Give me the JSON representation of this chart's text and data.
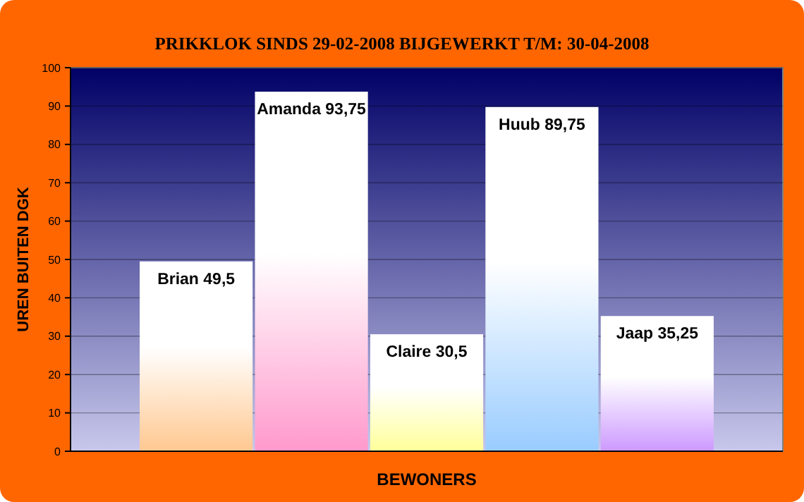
{
  "chart_data": {
    "type": "bar",
    "title": "PRIKKLOK SINDS 29-02-2008 BIJGEWERKT T/M: 30-04-2008",
    "xlabel": "BEWONERS",
    "ylabel": "UREN BUITEN DGK",
    "categories": [
      null,
      null,
      null,
      null,
      null
    ],
    "values": [
      49.5,
      93.75,
      30.5,
      89.75,
      35.25
    ],
    "value_labels": [
      "Brian 49,5",
      "Amanda 93,75",
      "Claire 30,5",
      "Huub 89,75",
      "Jaap 35,25"
    ],
    "colors": [
      "#ffc890",
      "#ff99cc",
      "#ffff99",
      "#99ccff",
      "#cc99ff"
    ],
    "ylim": [
      0,
      100
    ],
    "yticks": [
      0,
      10,
      20,
      30,
      40,
      50,
      60,
      70,
      80,
      90,
      100
    ],
    "grid": "y"
  }
}
